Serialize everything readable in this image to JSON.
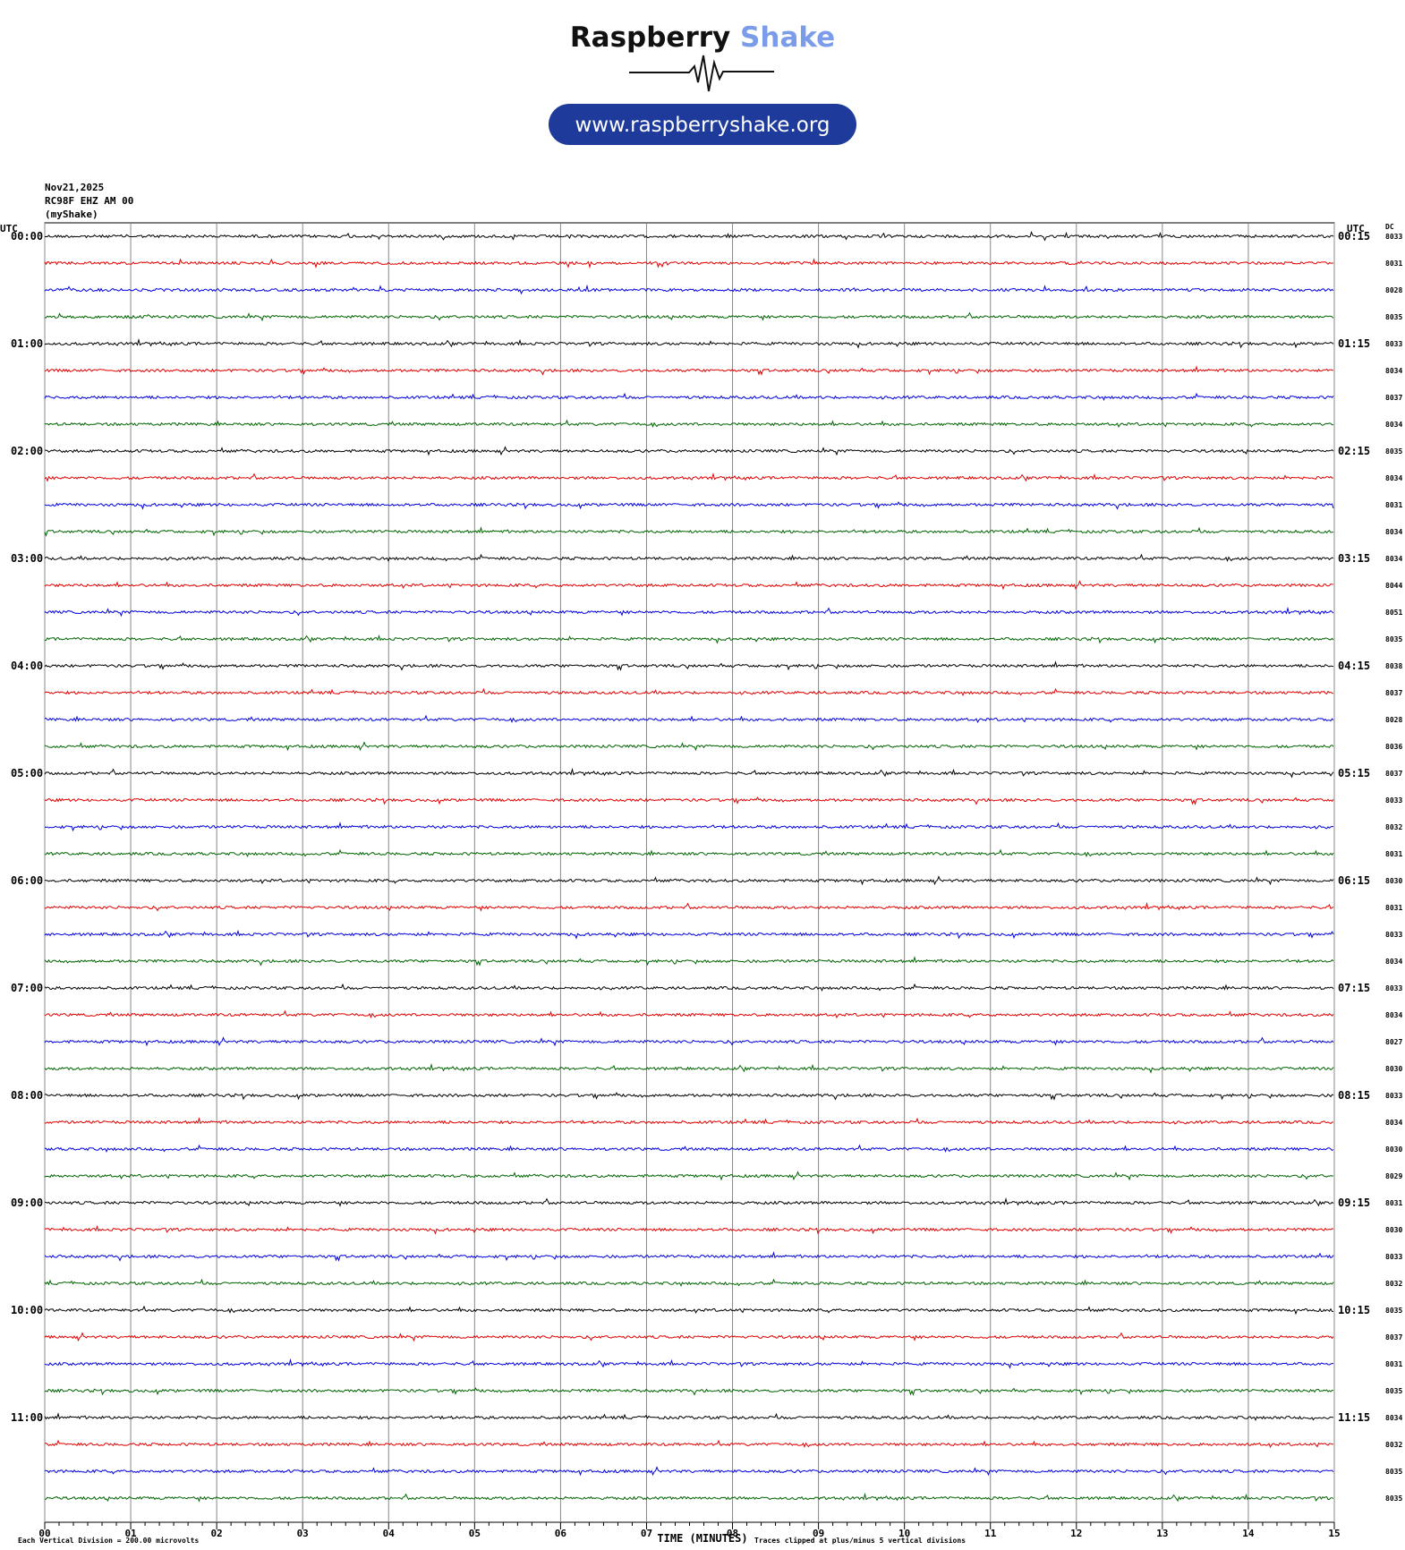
{
  "header": {
    "brand_main": "Raspberry",
    "brand_accent": "Shake",
    "url": "www.raspberryshake.org"
  },
  "chart_data": {
    "type": "helicorder",
    "date": "Nov21,2025",
    "station": "RC98F EHZ AM 00",
    "owner": "(myShake)",
    "left_utc": "UTC",
    "right_utc": "UTC",
    "dc_header": "DC",
    "hour_labels_left": [
      "00:00",
      "01:00",
      "02:00",
      "03:00",
      "04:00",
      "05:00",
      "06:00",
      "07:00",
      "08:00",
      "09:00",
      "10:00",
      "11:00"
    ],
    "hour_labels_right": [
      "00:15",
      "01:15",
      "02:15",
      "03:15",
      "04:15",
      "05:15",
      "06:15",
      "07:15",
      "08:15",
      "09:15",
      "10:15",
      "11:15"
    ],
    "dc_values": [
      8033,
      8031,
      8028,
      8035,
      8033,
      8034,
      8037,
      8034,
      8035,
      8034,
      8031,
      8034,
      8034,
      8044,
      8051,
      8035,
      8038,
      8037,
      8028,
      8036,
      8037,
      8033,
      8032,
      8031,
      8030,
      8031,
      8033,
      8034,
      8033,
      8034,
      8027,
      8030,
      8033,
      8034,
      8030,
      8029,
      8031,
      8030,
      8033,
      8032,
      8035,
      8037,
      8031,
      8035,
      8034,
      8032,
      8035,
      8035
    ],
    "colors": [
      "#000000",
      "#e00000",
      "#0000dd",
      "#006400"
    ],
    "xlim": [
      0,
      15
    ],
    "xticks": [
      {
        "value": 0,
        "label": "00"
      },
      {
        "value": 1,
        "label": "01"
      },
      {
        "value": 2,
        "label": "02"
      },
      {
        "value": 3,
        "label": "03"
      },
      {
        "value": 4,
        "label": "04"
      },
      {
        "value": 5,
        "label": "05"
      },
      {
        "value": 6,
        "label": "06"
      },
      {
        "value": 7,
        "label": "07"
      },
      {
        "value": 8,
        "label": "08"
      },
      {
        "value": 9,
        "label": "09"
      },
      {
        "value": 10,
        "label": "10"
      },
      {
        "value": 11,
        "label": "11"
      },
      {
        "value": 12,
        "label": "12"
      },
      {
        "value": 13,
        "label": "13"
      },
      {
        "value": 14,
        "label": "14"
      },
      {
        "value": 15,
        "label": "15"
      }
    ],
    "grid": true,
    "x_label": "TIME (MINUTES)",
    "scale_note": "Each Vertical Division =  200.00 microvolts",
    "clip_note": "Traces clipped at plus/minus 5 vertical divisions"
  }
}
